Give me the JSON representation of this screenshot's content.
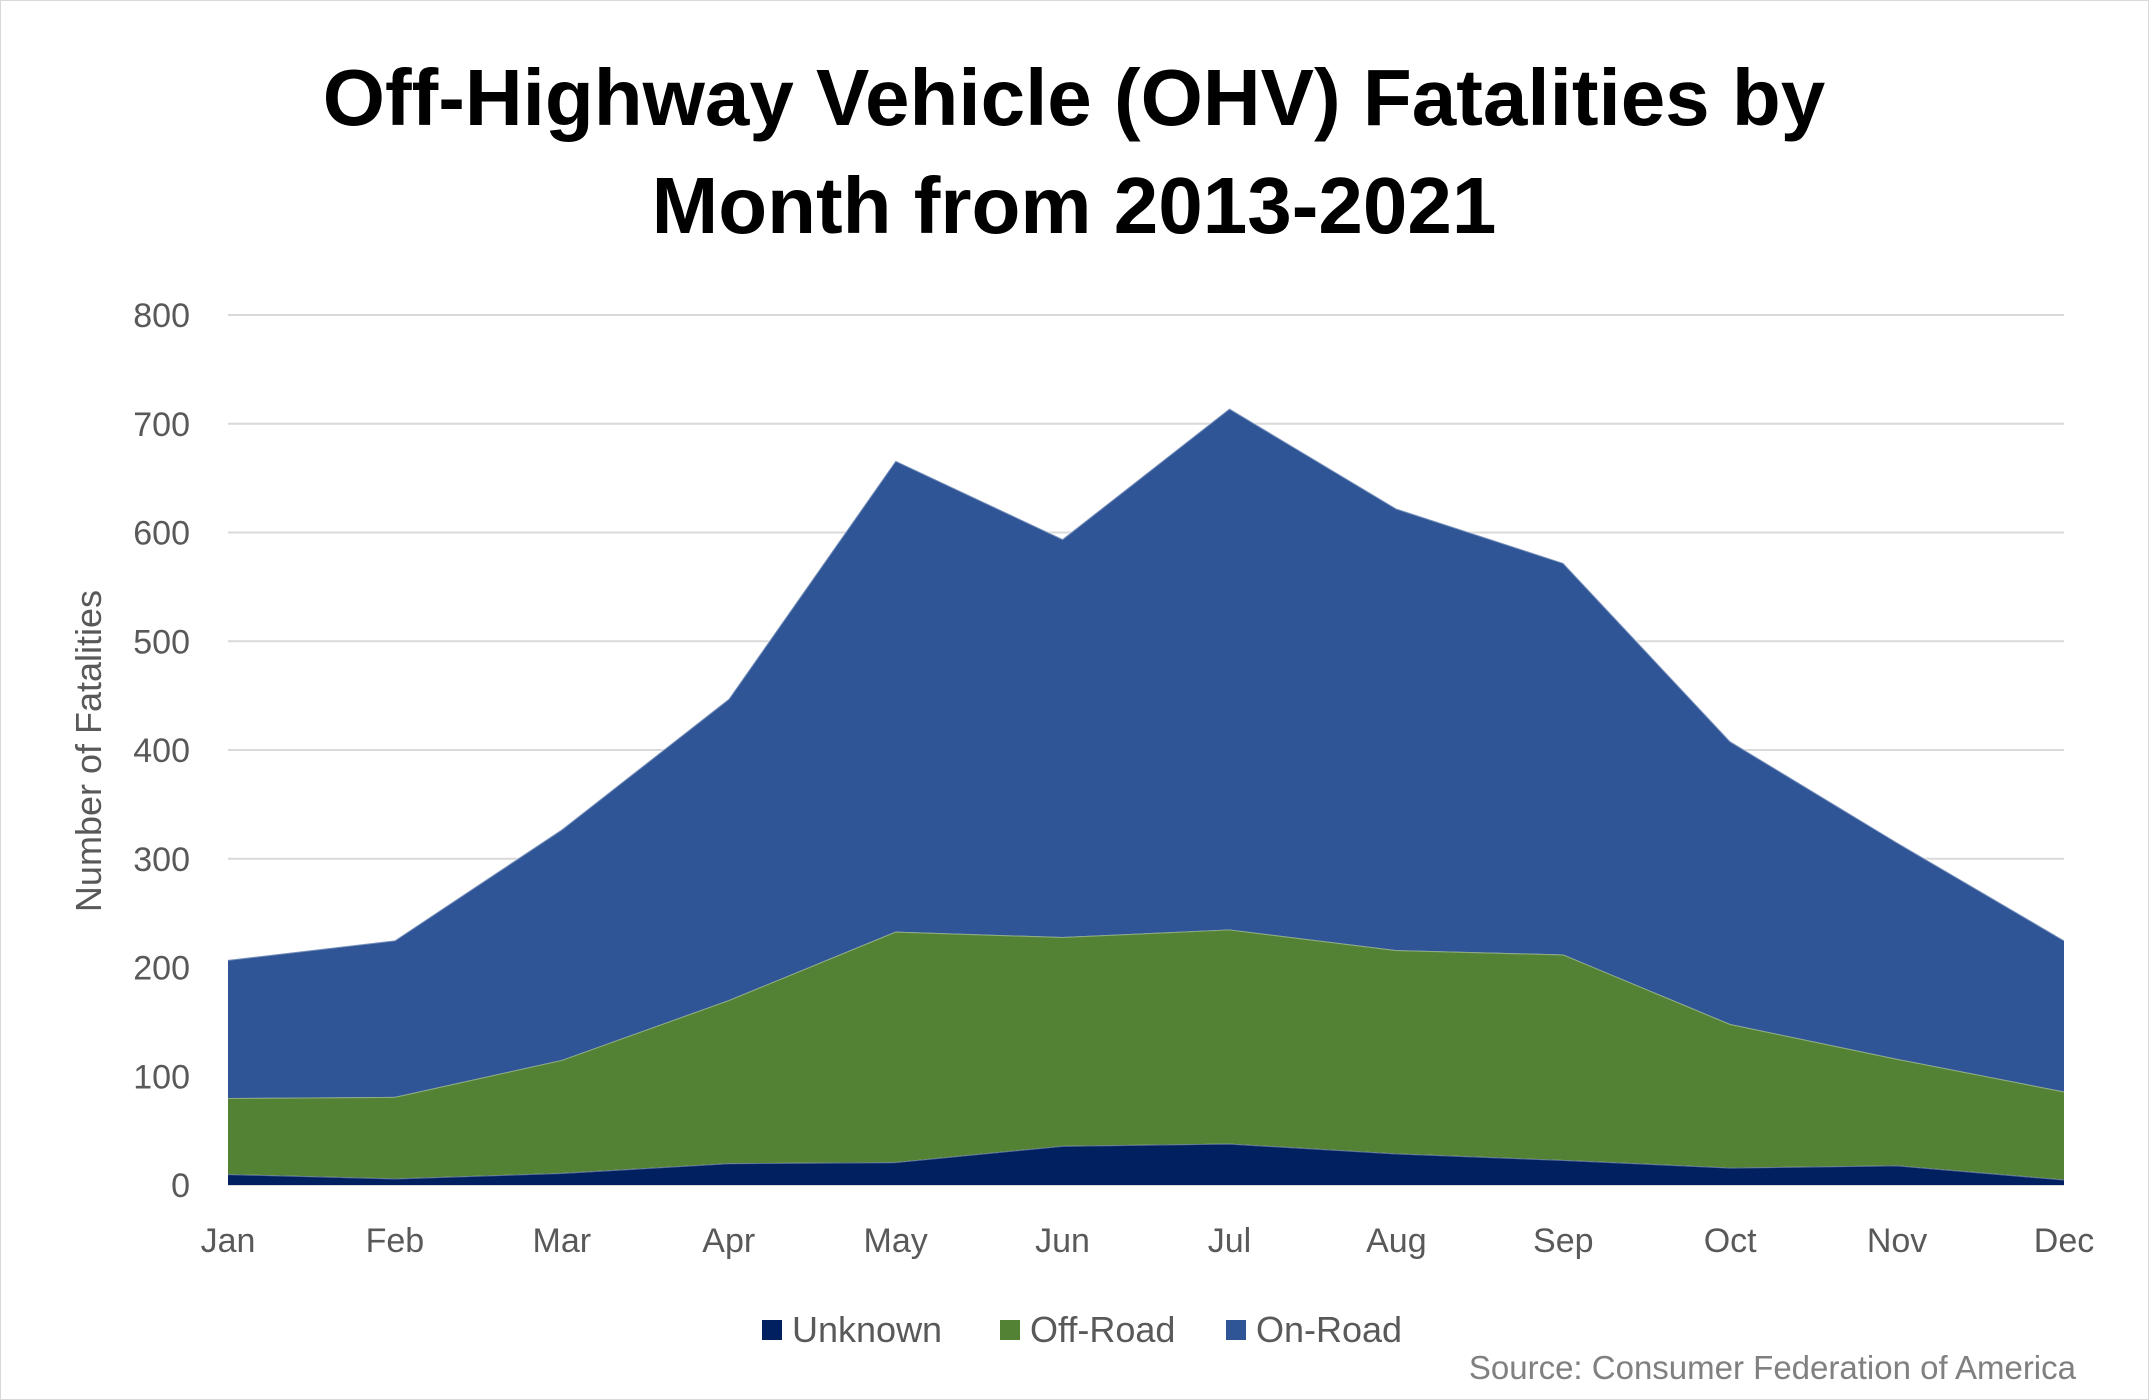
{
  "chart_data": {
    "type": "area",
    "stacked": true,
    "title_lines": [
      "Off-Highway Vehicle (OHV) Fatalities by",
      "Month from 2013-2021"
    ],
    "xlabel": "",
    "ylabel": "Number of Fatalities",
    "ylim": [
      0,
      800
    ],
    "yticks": [
      0,
      100,
      200,
      300,
      400,
      500,
      600,
      700,
      800
    ],
    "grid": true,
    "legend_position": "bottom",
    "categories": [
      "Jan",
      "Feb",
      "Mar",
      "Apr",
      "May",
      "Jun",
      "Jul",
      "Aug",
      "Sep",
      "Oct",
      "Nov",
      "Dec"
    ],
    "series": [
      {
        "name": "Unknown",
        "color": "#002060",
        "values": [
          10,
          6,
          11,
          20,
          21,
          36,
          38,
          29,
          23,
          16,
          18,
          5
        ]
      },
      {
        "name": "Off-Road",
        "color": "#548235",
        "values": [
          70,
          75,
          104,
          150,
          212,
          192,
          197,
          187,
          189,
          132,
          98,
          81
        ]
      },
      {
        "name": "On-Road",
        "color": "#2F5597",
        "values": [
          127,
          144,
          212,
          277,
          433,
          366,
          479,
          406,
          360,
          260,
          199,
          139
        ]
      }
    ],
    "source": "Source: Consumer Federation of America"
  }
}
